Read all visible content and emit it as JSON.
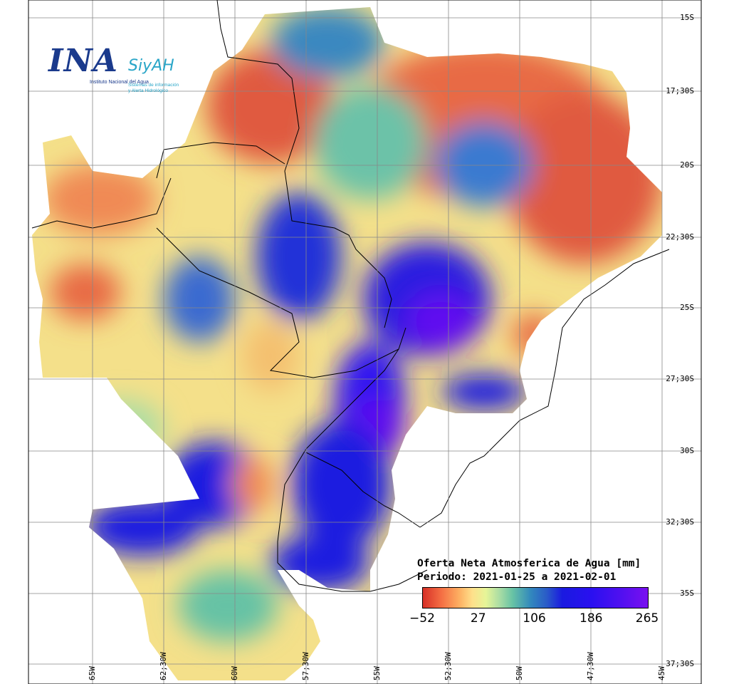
{
  "logo": {
    "name": "INA",
    "system": "SiyAH",
    "institute": "Instituto Nacional del Agua",
    "system_line1": "Sistemas de información",
    "system_line2": "y Alerta Hidrológico"
  },
  "legend": {
    "title": "Oferta Neta Atmosferica de Agua [mm]",
    "period": "Periodo: 2021-01-25 a 2021-02-01",
    "ticks": [
      "−52",
      "27",
      "106",
      "186",
      "265"
    ],
    "values": [
      -52,
      27,
      106,
      186,
      265
    ]
  },
  "axes": {
    "latitudes": [
      "15S",
      "17;30S",
      "20S",
      "22;30S",
      "25S",
      "27;30S",
      "30S",
      "32;30S",
      "35S",
      "37;30S"
    ],
    "longitudes": [
      "65W",
      "62;30W",
      "60W",
      "57;30W",
      "55W",
      "52;30W",
      "50W",
      "47;30W",
      "45W"
    ]
  },
  "colors": {
    "dry": "#d73027",
    "neutral": "#fee08b",
    "wet": "#1a1ae0",
    "very_wet": "#7a10f0"
  }
}
